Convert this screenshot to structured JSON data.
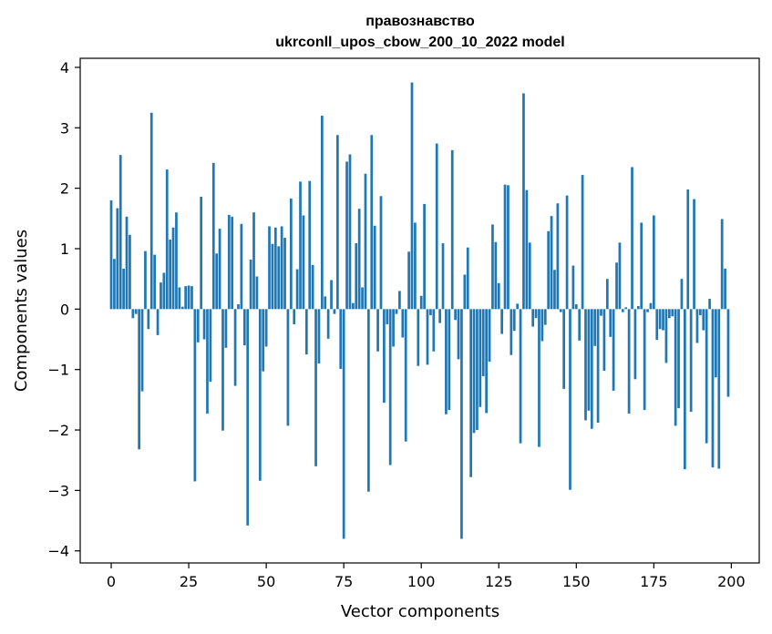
{
  "chart_data": {
    "type": "bar",
    "title_line1": "правознавство",
    "title_line2": "ukrconll_upos_cbow_200_10_2022 model",
    "xlabel": "Vector components",
    "ylabel": "Components values",
    "xlim": [
      -10,
      209
    ],
    "ylim": [
      -4.2,
      4.15
    ],
    "xticks": [
      0,
      25,
      50,
      75,
      100,
      125,
      150,
      175,
      200
    ],
    "yticks": [
      -4,
      -3,
      -2,
      -1,
      0,
      1,
      2,
      3,
      4
    ],
    "ytick_labels": [
      "−4",
      "−3",
      "−2",
      "−1",
      "0",
      "1",
      "2",
      "3",
      "4"
    ],
    "bar_color": "#1f77b4",
    "grid": false,
    "values": [
      1.8,
      0.83,
      1.67,
      2.55,
      0.67,
      1.53,
      1.23,
      -0.15,
      -0.08,
      -2.32,
      -1.36,
      0.96,
      -0.33,
      3.25,
      0.9,
      -0.43,
      0.44,
      0.6,
      2.31,
      1.15,
      1.35,
      1.6,
      0.36,
      0.04,
      0.38,
      0.39,
      0.38,
      -2.85,
      -0.55,
      1.86,
      -0.5,
      -1.73,
      -1.2,
      2.42,
      0.92,
      1.33,
      -2.01,
      -0.64,
      1.56,
      1.53,
      -1.27,
      0.08,
      1.41,
      -0.6,
      -3.58,
      0.82,
      1.6,
      0.54,
      -2.84,
      -1.03,
      -0.62,
      1.37,
      1.08,
      1.35,
      1.04,
      1.37,
      1.18,
      -1.93,
      1.83,
      -0.25,
      0.66,
      2.11,
      1.55,
      -0.75,
      2.12,
      0.73,
      -2.6,
      -0.9,
      3.2,
      0.21,
      -0.49,
      0.48,
      -0.08,
      2.88,
      -0.99,
      -3.8,
      2.44,
      2.56,
      0.1,
      1.09,
      1.66,
      0.36,
      2.24,
      -3.02,
      2.88,
      1.38,
      -0.7,
      1.87,
      -1.55,
      -0.25,
      -2.58,
      -0.62,
      -0.08,
      0.3,
      -0.47,
      -2.19,
      0.95,
      3.75,
      1.43,
      -0.94,
      0.22,
      1.74,
      -0.92,
      -0.1,
      -0.7,
      2.74,
      -0.23,
      1.09,
      -1.74,
      -1.67,
      2.63,
      -0.18,
      -0.83,
      -3.8,
      0.57,
      1.02,
      -2.78,
      -2.05,
      -2.0,
      -1.62,
      -1.11,
      -1.72,
      -0.87,
      1.4,
      1.11,
      0.43,
      -0.41,
      2.06,
      2.05,
      -0.76,
      -0.36,
      0.09,
      -2.22,
      3.57,
      1.97,
      1.1,
      -0.29,
      -0.15,
      -2.28,
      -0.53,
      -0.26,
      1.29,
      1.54,
      0.65,
      1.75,
      -0.05,
      -1.32,
      1.88,
      -2.99,
      0.72,
      0.08,
      -0.52,
      2.22,
      -1.84,
      -1.68,
      -1.98,
      -0.61,
      -1.88,
      -0.11,
      -1.02,
      0.5,
      -0.46,
      -1.35,
      0.77,
      1.1,
      -0.05,
      0.03,
      -1.73,
      2.35,
      -1.16,
      0.05,
      1.43,
      -1.67,
      -0.05,
      0.1,
      1.55,
      -0.51,
      -0.33,
      -0.35,
      -0.89,
      -0.15,
      -0.12,
      -1.93,
      -1.64,
      0.5,
      -2.65,
      1.98,
      -1.7,
      1.82,
      -0.56,
      -0.1,
      -0.35,
      -2.22,
      0.17,
      -2.62,
      -1.13,
      -2.64,
      1.49,
      0.67,
      -1.45
    ]
  }
}
